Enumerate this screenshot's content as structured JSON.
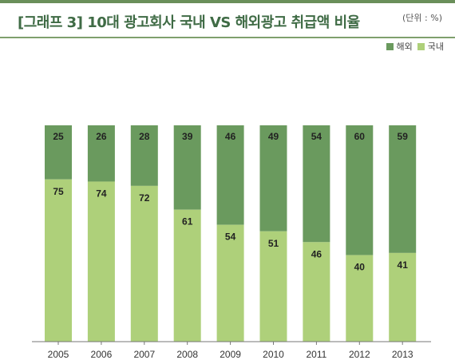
{
  "title": "[그래프 3] 10대 광고회사 국내 VS 해외광고 취급액 비율",
  "unit": "(단위 : %)",
  "colors": {
    "overseas": "#6a9a5e",
    "domestic": "#aed07a",
    "axis": "#777777",
    "accent": "#3f6b45"
  },
  "chart_data": {
    "type": "bar",
    "stacked": true,
    "categories": [
      "2005",
      "2006",
      "2007",
      "2008",
      "2009",
      "2010",
      "2011",
      "2012",
      "2013"
    ],
    "series": [
      {
        "name": "국내",
        "values": [
          75,
          74,
          72,
          61,
          54,
          51,
          46,
          40,
          41
        ]
      },
      {
        "name": "해외",
        "values": [
          25,
          26,
          28,
          39,
          46,
          49,
          54,
          60,
          59
        ]
      }
    ],
    "ylim": [
      0,
      100
    ],
    "legend": "top-right",
    "grid": false
  }
}
